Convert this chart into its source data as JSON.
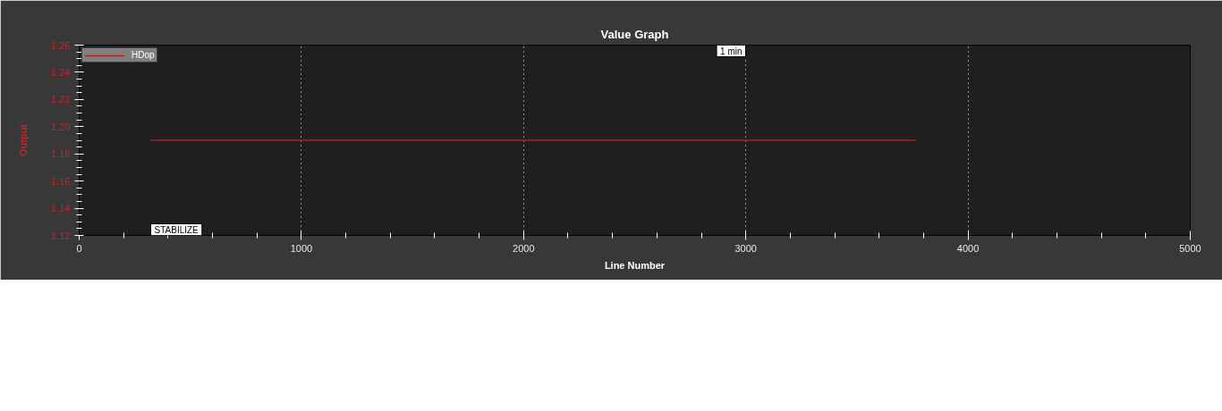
{
  "chart_data": {
    "type": "line",
    "title": "Value Graph",
    "xlabel": "Line Number",
    "ylabel": "Output",
    "x": [
      322,
      3764
    ],
    "series": [
      {
        "name": "HDop",
        "color": "#b22222",
        "values": [
          1.19,
          1.19
        ]
      }
    ],
    "xlim": [
      0,
      5000
    ],
    "ylim": [
      1.12,
      1.26
    ],
    "xticks": [
      0,
      {
        "value": 200,
        "label": null
      },
      {
        "value": 400,
        "label": null
      },
      {
        "value": 600,
        "label": null
      },
      {
        "value": 800,
        "label": null
      },
      1000,
      {
        "value": 1200,
        "label": null
      },
      {
        "value": 1400,
        "label": null
      },
      {
        "value": 1600,
        "label": null
      },
      {
        "value": 1800,
        "label": null
      },
      2000,
      {
        "value": 2200,
        "label": null
      },
      {
        "value": 2400,
        "label": null
      },
      {
        "value": 2600,
        "label": null
      },
      {
        "value": 2800,
        "label": null
      },
      3000,
      {
        "value": 3200,
        "label": null
      },
      {
        "value": 3400,
        "label": null
      },
      {
        "value": 3600,
        "label": null
      },
      {
        "value": 3800,
        "label": null
      },
      4000,
      {
        "value": 4200,
        "label": null
      },
      {
        "value": 4400,
        "label": null
      },
      {
        "value": 4600,
        "label": null
      },
      {
        "value": 4800,
        "label": null
      },
      5000
    ],
    "yticks": [
      1.12,
      {
        "value": 1.125,
        "label": null
      },
      {
        "value": 1.13,
        "label": null
      },
      {
        "value": 1.135,
        "label": null
      },
      1.14,
      {
        "value": 1.145,
        "label": null
      },
      {
        "value": 1.15,
        "label": null
      },
      {
        "value": 1.155,
        "label": null
      },
      1.16,
      {
        "value": 1.165,
        "label": null
      },
      {
        "value": 1.17,
        "label": null
      },
      {
        "value": 1.175,
        "label": null
      },
      1.18,
      {
        "value": 1.185,
        "label": null
      },
      {
        "value": 1.19,
        "label": null
      },
      {
        "value": 1.195,
        "label": null
      },
      {
        "value": 1.2,
        "label": "1.20"
      },
      {
        "value": 1.205,
        "label": null
      },
      {
        "value": 1.21,
        "label": null
      },
      {
        "value": 1.215,
        "label": null
      },
      1.22,
      {
        "value": 1.225,
        "label": null
      },
      {
        "value": 1.23,
        "label": null
      },
      {
        "value": 1.235,
        "label": null
      },
      1.24,
      {
        "value": 1.245,
        "label": null
      },
      {
        "value": 1.25,
        "label": null
      },
      {
        "value": 1.255,
        "label": null
      },
      1.26
    ],
    "grid": "x",
    "legend": "top left",
    "marker": "none",
    "line_style": "solid",
    "annotations": [
      "STABILIZE",
      "1 min"
    ]
  }
}
